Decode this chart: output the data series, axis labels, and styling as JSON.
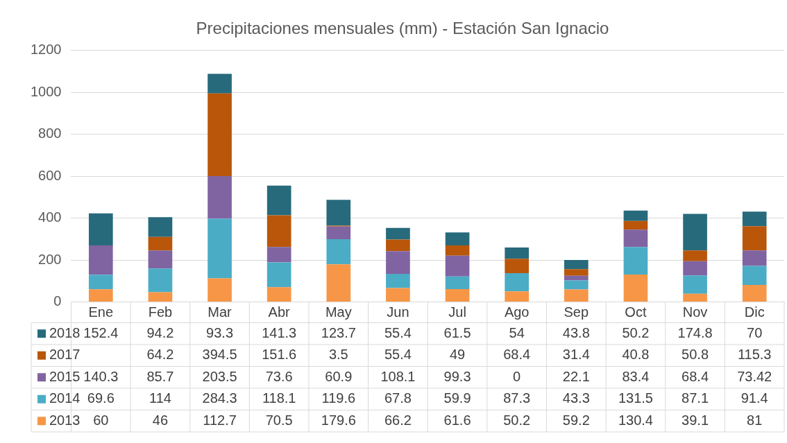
{
  "chart_data": {
    "type": "bar",
    "title": "Precipitaciones mensuales (mm) - Estación San Ignacio",
    "categories": [
      "Ene",
      "Feb",
      "Mar",
      "Abr",
      "May",
      "Jun",
      "Jul",
      "Ago",
      "Sep",
      "Oct",
      "Nov",
      "Dic"
    ],
    "series": [
      {
        "name": "2013",
        "color": "#f79646",
        "values": [
          60,
          46,
          112.7,
          70.5,
          179.6,
          66.2,
          61.6,
          50.2,
          59.2,
          130.4,
          39.1,
          81
        ]
      },
      {
        "name": "2014",
        "color": "#4bacc6",
        "values": [
          69.6,
          114,
          284.3,
          118.1,
          119.6,
          67.8,
          59.9,
          87.3,
          43.3,
          131.5,
          87.1,
          91.4
        ]
      },
      {
        "name": "2015",
        "color": "#8064a2",
        "values": [
          140.3,
          85.7,
          203.5,
          73.6,
          60.9,
          108.1,
          99.3,
          0,
          22.1,
          83.4,
          68.4,
          73.42
        ]
      },
      {
        "name": "2017",
        "color": "#b9560a",
        "values": [
          null,
          64.2,
          394.5,
          151.6,
          3.5,
          55.4,
          49,
          68.4,
          31.4,
          40.8,
          50.8,
          115.3
        ]
      },
      {
        "name": "2018",
        "color": "#276a7c",
        "values": [
          152.4,
          94.2,
          93.3,
          141.3,
          123.7,
          55.4,
          61.5,
          54,
          43.8,
          50.2,
          174.8,
          70
        ]
      }
    ],
    "stacked": true,
    "ylim": [
      0,
      1200
    ],
    "yticks": [
      0,
      200,
      400,
      600,
      800,
      1000,
      1200
    ],
    "grid": "y",
    "legend": "bottom",
    "data_labels": true
  }
}
